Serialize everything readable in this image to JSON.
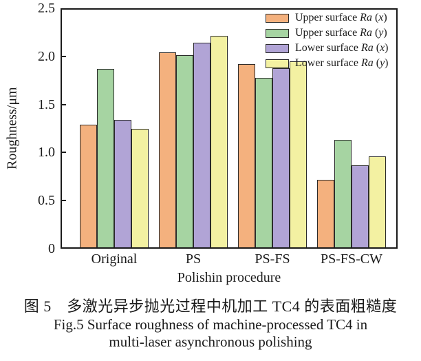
{
  "figure": {
    "caption_zh": "图 5　多激光异步抛光过程中机加工 TC4 的表面粗糙度",
    "caption_en_line1": "Fig.5 Surface roughness of machine-processed TC4 in",
    "caption_en_line2": "multi-laser asynchronous polishing"
  },
  "chart_data": {
    "type": "bar",
    "title": "",
    "xlabel": "Polishin procedure",
    "ylabel": "Roughness/μm",
    "ylim": [
      0,
      2.5
    ],
    "yticks": [
      "0",
      "0.5",
      "1.0",
      "1.5",
      "2.0",
      "2.5"
    ],
    "grid": false,
    "legend_position": "upper right",
    "categories": [
      "Original",
      "PS",
      "PS-FS",
      "PS-FS-CW"
    ],
    "series": [
      {
        "name": "Upper surface Ra (x)",
        "color": "#F4B17E",
        "values": [
          1.29,
          2.04,
          1.92,
          0.72
        ]
      },
      {
        "name": "Upper surface Ra (y)",
        "color": "#A6D4A2",
        "values": [
          1.87,
          2.01,
          1.78,
          1.13
        ]
      },
      {
        "name": "Lower surface Ra (x)",
        "color": "#B1A4D6",
        "values": [
          1.34,
          2.14,
          1.88,
          0.87
        ]
      },
      {
        "name": "Lower surface Ra (y)",
        "color": "#F3F1A2",
        "values": [
          1.25,
          2.21,
          1.95,
          0.96
        ]
      }
    ],
    "bar_border_color": "#2b2b2b"
  }
}
